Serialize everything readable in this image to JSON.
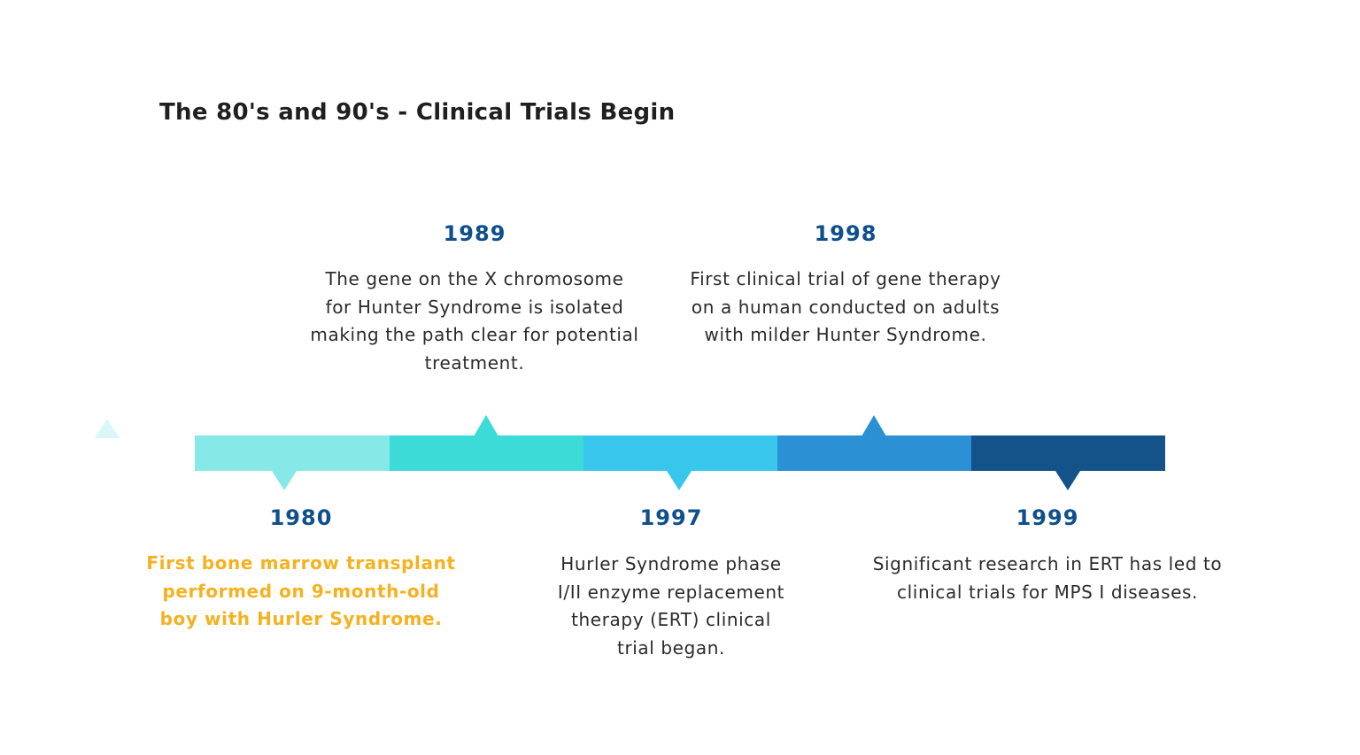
{
  "title": "The 80's and 90's - Clinical Trials Begin",
  "colors": {
    "title": "#1f1f1f",
    "year": "#0f4f8c",
    "text": "#2b2b2b",
    "highlight": "#f5b11f",
    "decorative_triangle": "#d9f6f8",
    "segments": [
      "#86e8e7",
      "#3ddbd8",
      "#38c6ec",
      "#2c90d5",
      "#13538a"
    ]
  },
  "events": [
    {
      "year": "1980",
      "lines": [
        "First bone marrow transplant",
        "performed on 9-month-old",
        "boy with Hurler Syndrome."
      ],
      "highlighted": true
    },
    {
      "year": "1989",
      "lines": [
        "The gene on the X chromosome",
        "for Hunter Syndrome is isolated",
        "making the path clear for potential",
        "treatment."
      ],
      "highlighted": false
    },
    {
      "year": "1997",
      "lines": [
        "Hurler Syndrome phase",
        "I/II enzyme replacement",
        "therapy (ERT) clinical",
        "trial began."
      ],
      "highlighted": false
    },
    {
      "year": "1998",
      "lines": [
        "First clinical trial of gene therapy",
        "on a human conducted on adults",
        "with milder Hunter Syndrome."
      ],
      "highlighted": false
    },
    {
      "year": "1999",
      "lines": [
        "Significant research in ERT has led to",
        "clinical trials for MPS I diseases."
      ],
      "highlighted": false
    }
  ]
}
